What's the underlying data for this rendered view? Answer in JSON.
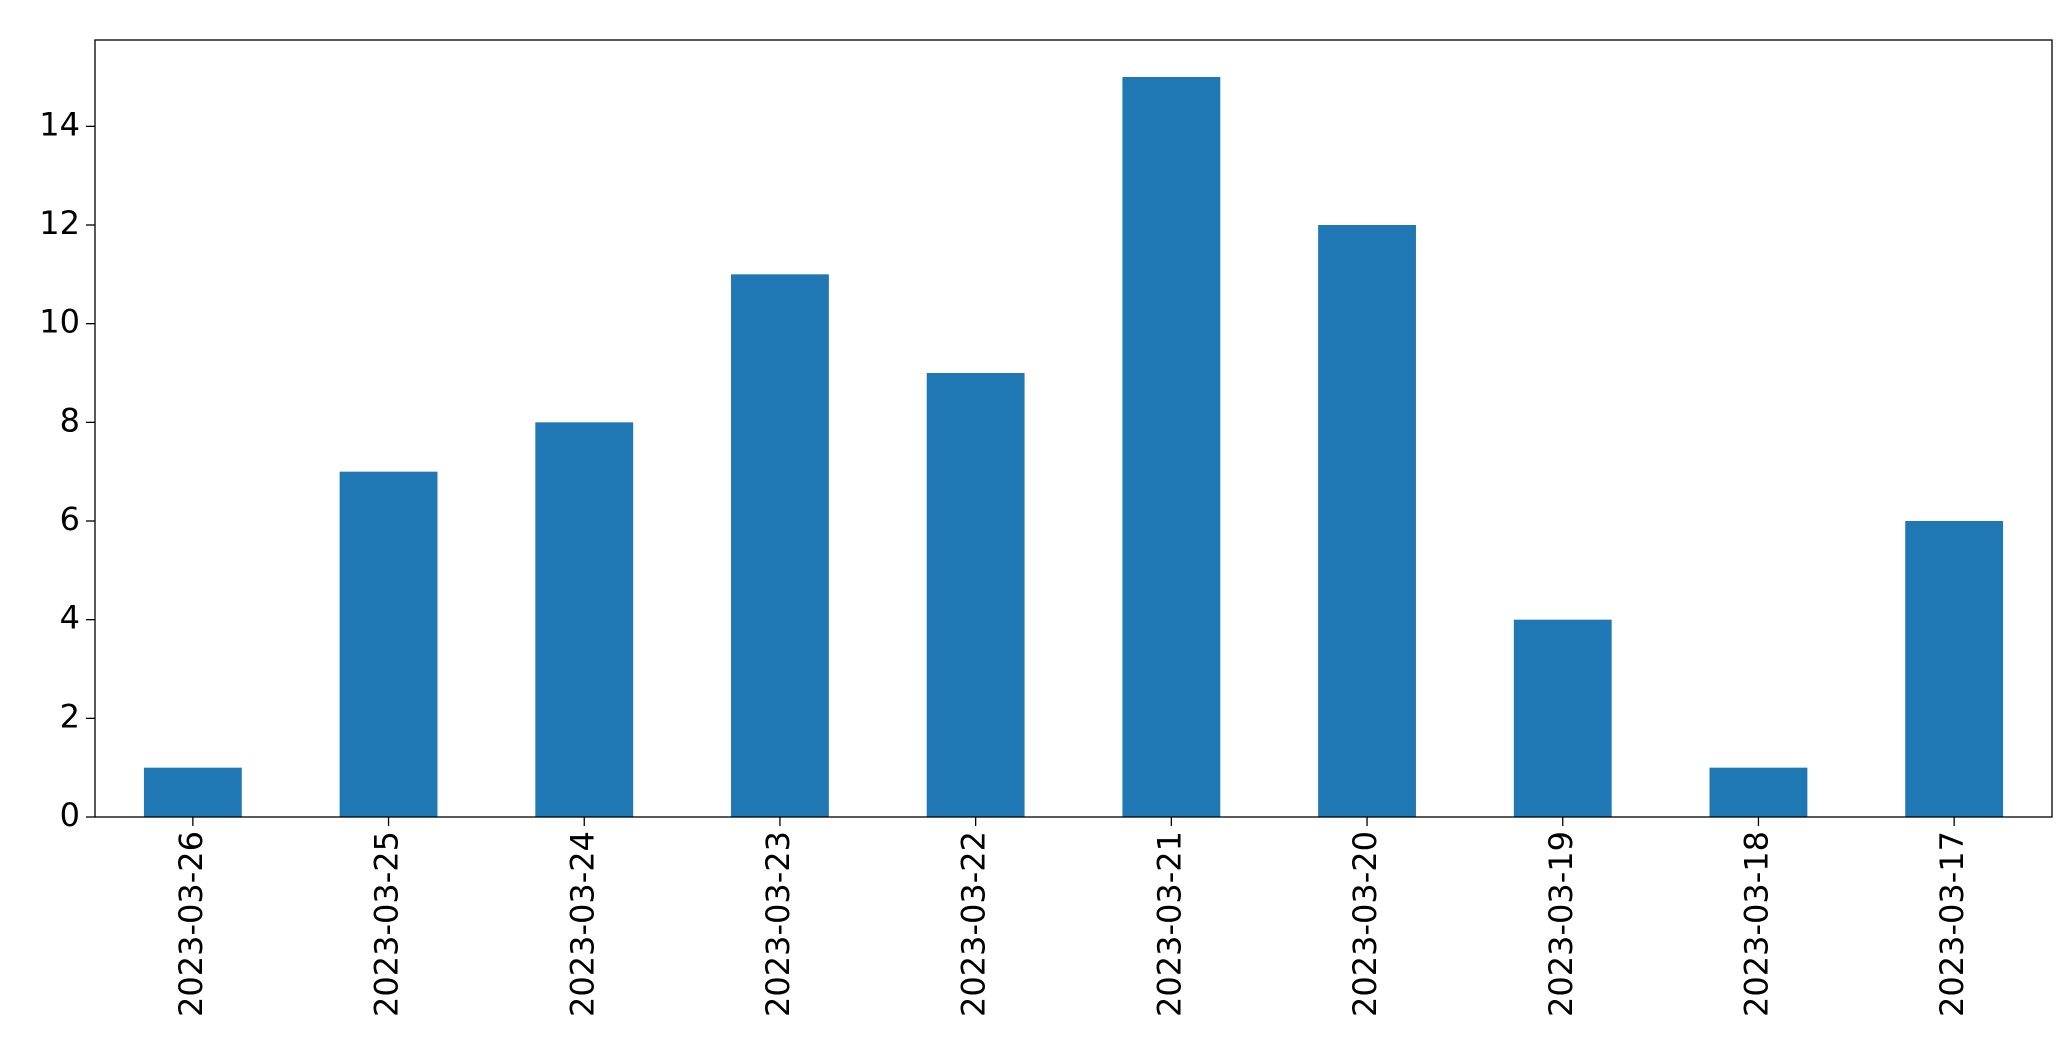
{
  "chart_data": {
    "type": "bar",
    "categories": [
      "2023-03-26",
      "2023-03-25",
      "2023-03-24",
      "2023-03-23",
      "2023-03-22",
      "2023-03-21",
      "2023-03-20",
      "2023-03-19",
      "2023-03-18",
      "2023-03-17"
    ],
    "values": [
      1,
      7,
      8,
      11,
      9,
      15,
      12,
      4,
      1,
      6
    ],
    "color": "#1f77b4",
    "ylim": [
      0,
      15.75
    ],
    "yticks": [
      0,
      2,
      4,
      6,
      8,
      10,
      12,
      14
    ],
    "grid": false
  }
}
